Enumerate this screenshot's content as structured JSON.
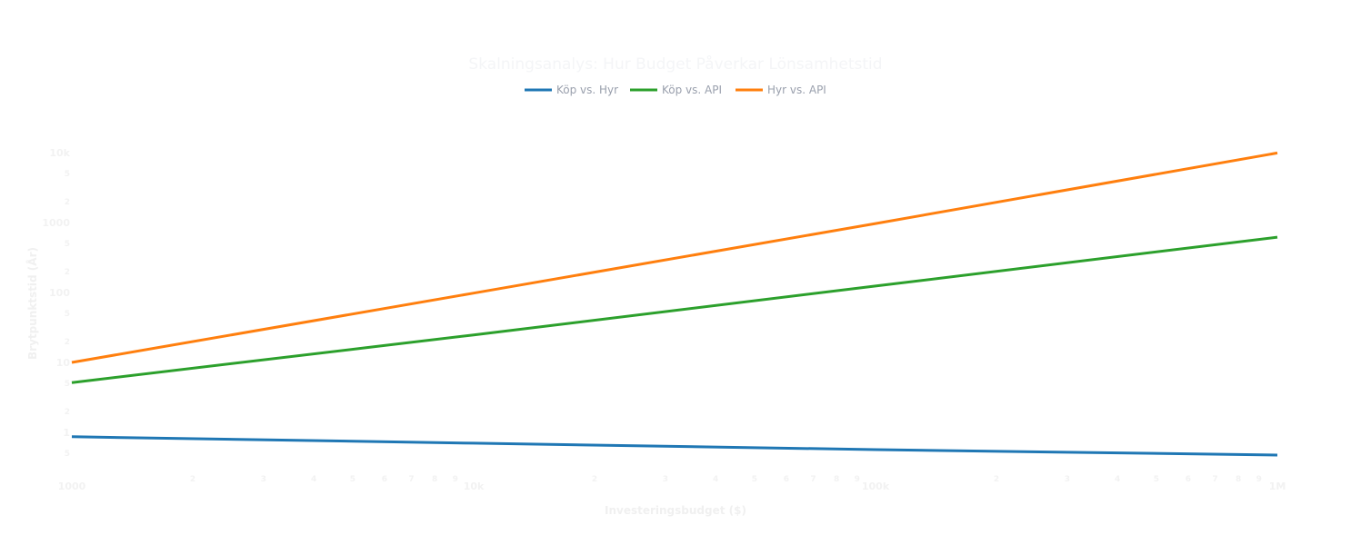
{
  "chart_data": {
    "type": "line",
    "title": "Skalningsanalys: Hur Budget Påverkar Lönsamhetstid",
    "xlabel": "Investeringsbudget ($)",
    "ylabel": "Brytpunktstid (År)",
    "xscale": "log",
    "yscale": "log",
    "xlim": [
      1000,
      1000000
    ],
    "ylim": [
      0.42,
      13000
    ],
    "grid": false,
    "legend_position": "top-center",
    "x_major_ticks": [
      {
        "value": 1000,
        "label": "1000"
      },
      {
        "value": 10000,
        "label": "10k"
      },
      {
        "value": 100000,
        "label": "100k"
      },
      {
        "value": 1000000,
        "label": "1M"
      }
    ],
    "x_minor_labels": [
      "2",
      "3",
      "4",
      "5",
      "6",
      "7",
      "8",
      "9"
    ],
    "y_major_ticks": [
      {
        "value": 1,
        "label": "1"
      },
      {
        "value": 10,
        "label": "10"
      },
      {
        "value": 100,
        "label": "100"
      },
      {
        "value": 1000,
        "label": "1000"
      },
      {
        "value": 10000,
        "label": "10k"
      }
    ],
    "y_minor_labels": [
      "2",
      "5"
    ],
    "y_extra_tick": {
      "value": 0.5,
      "label": "5"
    },
    "x": [
      1000,
      10000,
      100000,
      1000000
    ],
    "series": [
      {
        "name": "Köp vs. Hyr",
        "color": "#1f77b4",
        "values": [
          0.84,
          0.68,
          0.55,
          0.46
        ]
      },
      {
        "name": "Köp vs. API",
        "color": "#2ca02c",
        "values": [
          5.0,
          24,
          120,
          600
        ]
      },
      {
        "name": "Hyr vs. API",
        "color": "#ff7f0e",
        "values": [
          9.7,
          95,
          940,
          9600
        ]
      }
    ]
  }
}
